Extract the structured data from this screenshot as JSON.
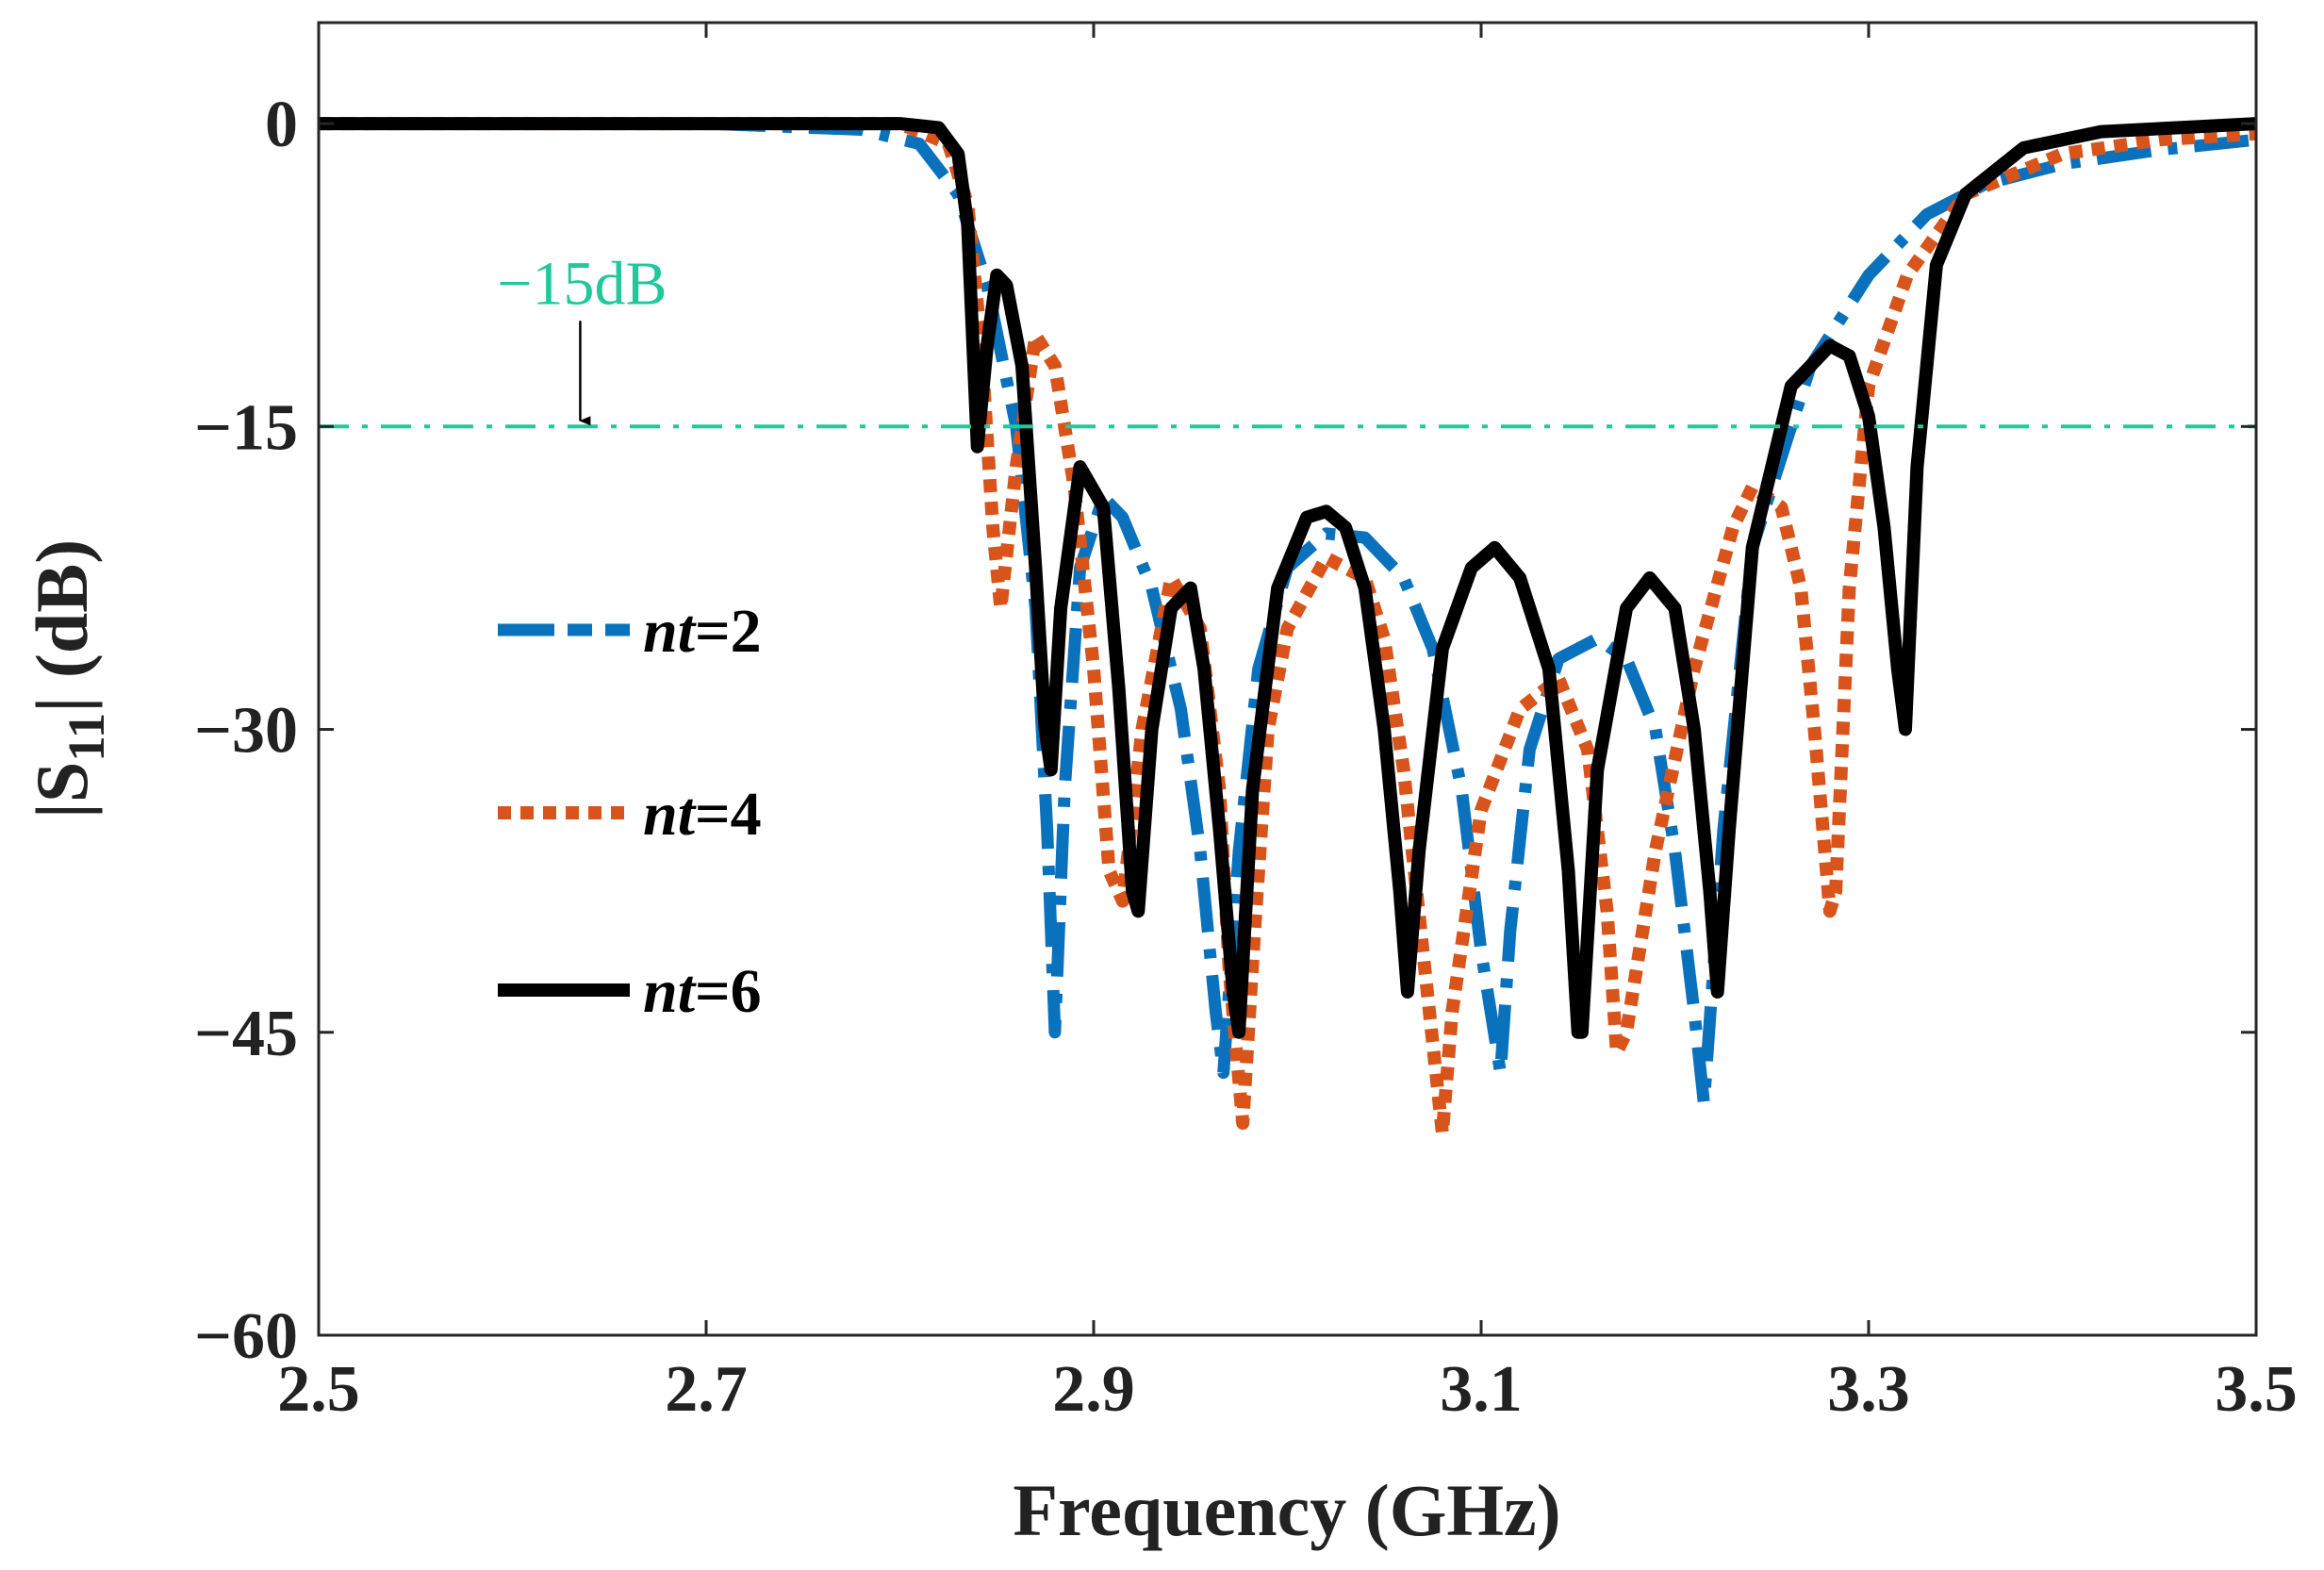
{
  "chart_data": {
    "type": "line",
    "title": "",
    "xlabel": "Frequency (GHz)",
    "ylabel": "|S11| (dB)",
    "ylabel_main": "|S",
    "ylabel_sub": "11",
    "ylabel_tail": "| (dB)",
    "xlim": [
      2.5,
      3.5
    ],
    "ylim": [
      -60,
      5
    ],
    "xticks": [
      2.5,
      2.7,
      2.9,
      3.1,
      3.3,
      3.5
    ],
    "xtick_labels": [
      "2.5",
      "2.7",
      "2.9",
      "3.1",
      "3.3",
      "3.5"
    ],
    "yticks": [
      0,
      -15,
      -30,
      -45,
      -60
    ],
    "ytick_labels": [
      "0",
      "−15",
      "−30",
      "−45",
      "−60"
    ],
    "grid": false,
    "legend_position": "left-center",
    "annotation": {
      "text": "−15dB",
      "line_value": -15,
      "arrow_x": 2.635,
      "color": "#1fc99b"
    },
    "series": [
      {
        "name": "nt=2",
        "name_italic": "nt",
        "name_rest": "=2",
        "color": "#0a72bd",
        "style": "dashdot",
        "x": [
          2.5,
          2.6,
          2.7,
          2.78,
          2.81,
          2.83,
          2.845,
          2.86,
          2.87,
          2.876,
          2.88,
          2.885,
          2.893,
          2.905,
          2.915,
          2.93,
          2.945,
          2.955,
          2.963,
          2.967,
          2.975,
          2.985,
          3.0,
          3.02,
          3.04,
          3.06,
          3.075,
          3.09,
          3.1,
          3.11,
          3.115,
          3.125,
          3.14,
          3.16,
          3.175,
          3.19,
          3.2,
          3.21,
          3.215,
          3.225,
          3.24,
          3.27,
          3.3,
          3.33,
          3.36,
          3.4,
          3.45,
          3.5
        ],
        "y": [
          0,
          0,
          0,
          -0.3,
          -1,
          -3.5,
          -8,
          -15,
          -24,
          -35,
          -45,
          -33,
          -22,
          -18.5,
          -19.5,
          -23,
          -29,
          -36,
          -44,
          -47,
          -36,
          -27,
          -22,
          -20.3,
          -20.5,
          -22.5,
          -26,
          -33,
          -41,
          -47,
          -40,
          -31,
          -26.5,
          -25.5,
          -26.5,
          -30,
          -36,
          -44,
          -48.5,
          -35,
          -21,
          -12,
          -7.5,
          -4.5,
          -3,
          -2,
          -1.3,
          -0.8
        ]
      },
      {
        "name": "nt=4",
        "name_italic": "nt",
        "name_rest": "=4",
        "color": "#d9541a",
        "style": "dotted",
        "x": [
          2.5,
          2.6,
          2.7,
          2.8,
          2.825,
          2.835,
          2.842,
          2.848,
          2.852,
          2.86,
          2.87,
          2.88,
          2.89,
          2.9,
          2.908,
          2.915,
          2.925,
          2.94,
          2.955,
          2.965,
          2.97,
          2.977,
          2.983,
          2.99,
          3.0,
          3.02,
          3.04,
          3.05,
          3.06,
          3.07,
          3.08,
          3.085,
          3.1,
          3.12,
          3.14,
          3.155,
          3.165,
          3.17,
          3.175,
          3.19,
          3.21,
          3.23,
          3.24,
          3.255,
          3.265,
          3.272,
          3.28,
          3.283,
          3.29,
          3.3,
          3.32,
          3.35,
          3.4,
          3.45,
          3.5
        ],
        "y": [
          0,
          0,
          0,
          0,
          -1,
          -4,
          -11,
          -20,
          -24,
          -17,
          -10.5,
          -12,
          -18,
          -27,
          -37,
          -38.5,
          -30,
          -22.5,
          -25,
          -33,
          -42,
          -49.5,
          -40,
          -30,
          -25,
          -21.5,
          -22.5,
          -25.5,
          -32,
          -41,
          -50,
          -44,
          -34,
          -29,
          -27.5,
          -31,
          -39,
          -46,
          -45,
          -36,
          -27,
          -20,
          -18,
          -19,
          -23,
          -30,
          -39,
          -38,
          -23,
          -13,
          -7.5,
          -3.5,
          -1.5,
          -0.8,
          -0.5
        ]
      },
      {
        "name": "nt=6",
        "name_italic": "nt",
        "name_rest": "=6",
        "color": "#000000",
        "style": "solid",
        "x": [
          2.5,
          2.6,
          2.7,
          2.8,
          2.82,
          2.83,
          2.835,
          2.84,
          2.845,
          2.85,
          2.855,
          2.863,
          2.87,
          2.875,
          2.878,
          2.883,
          2.893,
          2.905,
          2.913,
          2.92,
          2.923,
          2.93,
          2.94,
          2.95,
          2.957,
          2.965,
          2.972,
          2.975,
          2.982,
          2.995,
          3.01,
          3.02,
          3.03,
          3.04,
          3.05,
          3.058,
          3.062,
          3.068,
          3.08,
          3.095,
          3.107,
          3.12,
          3.135,
          3.145,
          3.15,
          3.152,
          3.16,
          3.175,
          3.187,
          3.2,
          3.21,
          3.218,
          3.222,
          3.228,
          3.24,
          3.26,
          3.28,
          3.29,
          3.3,
          3.308,
          3.315,
          3.319,
          3.325,
          3.335,
          3.35,
          3.38,
          3.42,
          3.46,
          3.5
        ],
        "y": [
          0,
          0,
          0,
          0,
          -0.2,
          -1.5,
          -5,
          -16,
          -11,
          -7.5,
          -8,
          -12,
          -22,
          -30,
          -32,
          -24,
          -17,
          -19,
          -28,
          -38,
          -39,
          -30,
          -24,
          -23,
          -27,
          -35,
          -43,
          -45,
          -33,
          -23,
          -19.5,
          -19.2,
          -20,
          -23,
          -30,
          -38,
          -43,
          -36,
          -26,
          -22,
          -21,
          -22.5,
          -27,
          -37,
          -45,
          -45,
          -32,
          -24,
          -22.5,
          -24,
          -30,
          -38,
          -43,
          -35,
          -21,
          -13,
          -11,
          -11.5,
          -14.5,
          -20,
          -27,
          -30,
          -17,
          -7,
          -3.5,
          -1.2,
          -0.4,
          -0.2,
          0
        ]
      }
    ]
  }
}
